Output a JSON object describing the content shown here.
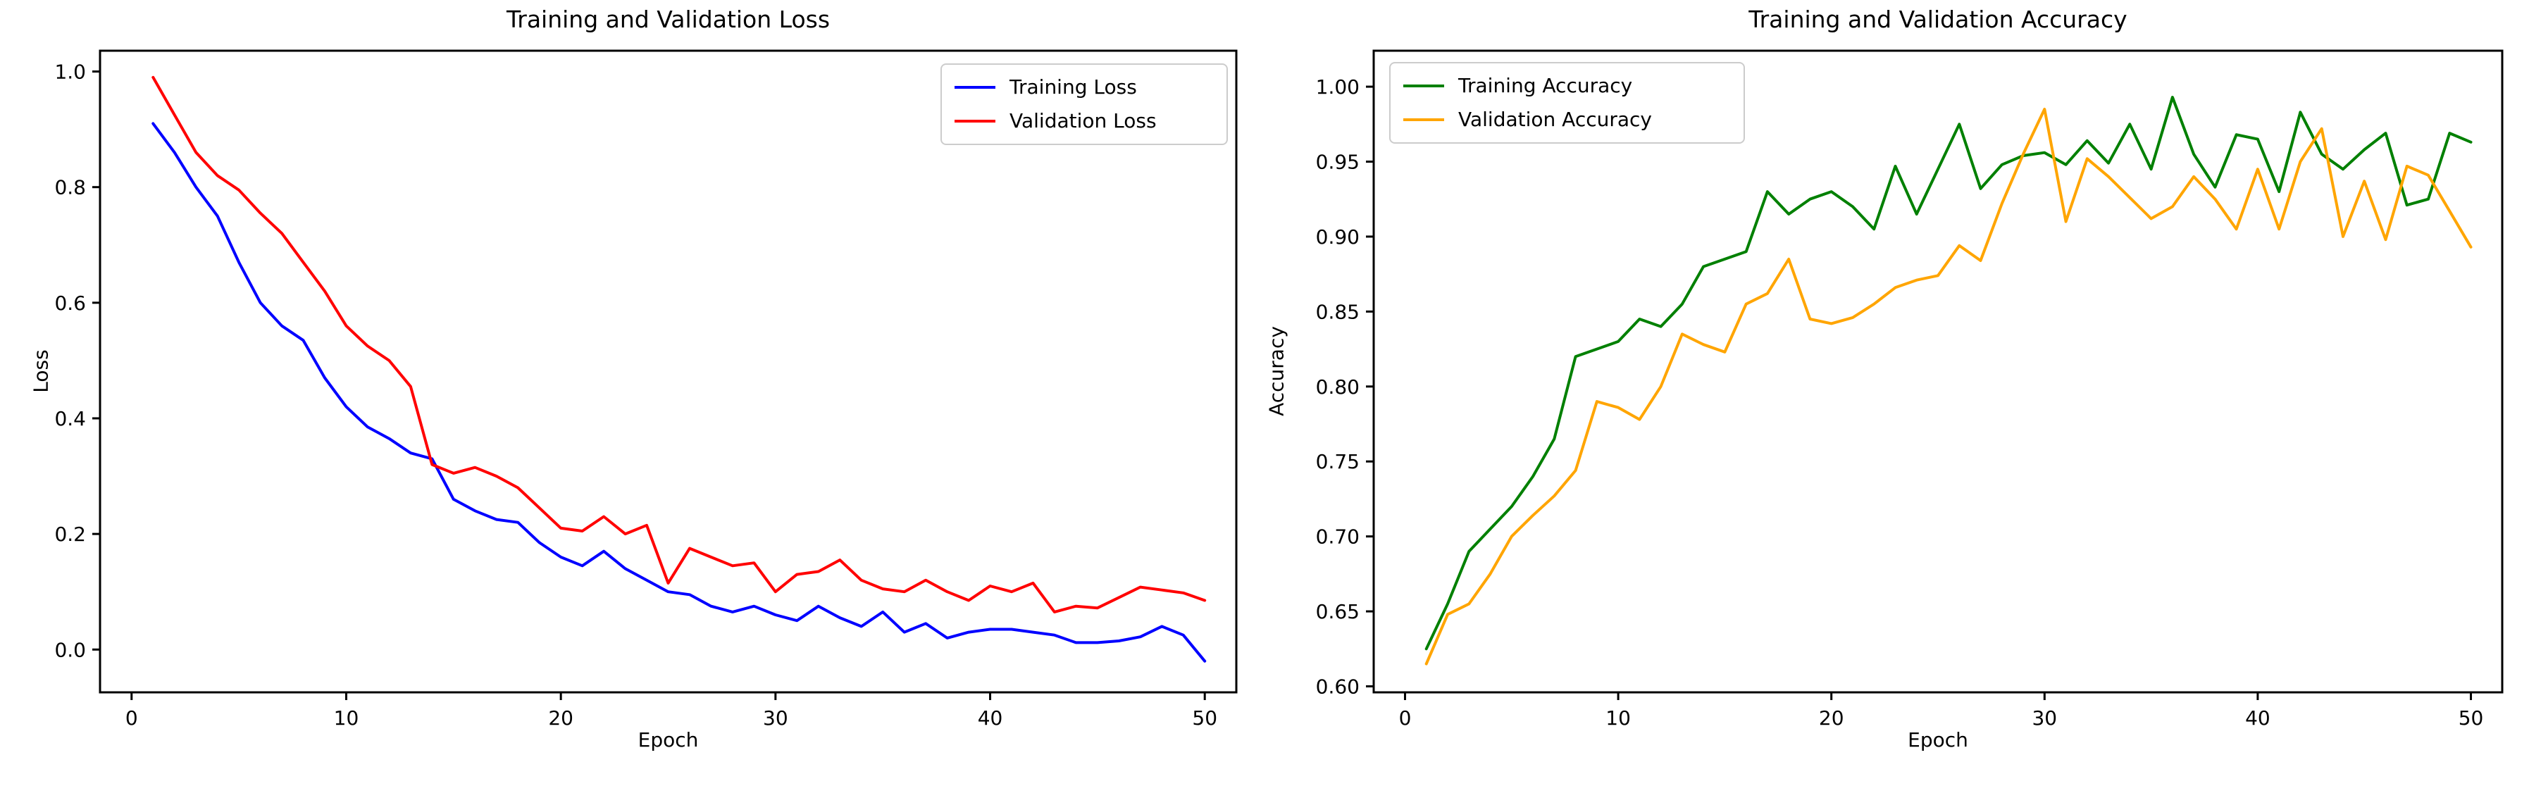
{
  "figure": {
    "background_color": "#ffffff",
    "text_color": "#000000",
    "spine_color": "#000000"
  },
  "chart_data": [
    {
      "type": "line",
      "title": "Training and Validation Loss",
      "xlabel": "Epoch",
      "ylabel": "Loss",
      "xlim": [
        -1.47,
        51.47
      ],
      "ylim": [
        -0.074,
        1.036
      ],
      "xticks": [
        0,
        10,
        20,
        30,
        40,
        50
      ],
      "xtick_labels": [
        "0",
        "10",
        "20",
        "30",
        "40",
        "50"
      ],
      "yticks": [
        0.0,
        0.2,
        0.4,
        0.6,
        0.8,
        1.0
      ],
      "ytick_labels": [
        "0.0",
        "0.2",
        "0.4",
        "0.6",
        "0.8",
        "1.0"
      ],
      "grid": false,
      "legend_position": "upper right",
      "x": [
        1,
        2,
        3,
        4,
        5,
        6,
        7,
        8,
        9,
        10,
        11,
        12,
        13,
        14,
        15,
        16,
        17,
        18,
        19,
        20,
        21,
        22,
        23,
        24,
        25,
        26,
        27,
        28,
        29,
        30,
        31,
        32,
        33,
        34,
        35,
        36,
        37,
        38,
        39,
        40,
        41,
        42,
        43,
        44,
        45,
        46,
        47,
        48,
        49,
        50
      ],
      "series": [
        {
          "name": "Training Loss",
          "color": "#0000ff",
          "values": [
            0.91,
            0.86,
            0.8,
            0.75,
            0.67,
            0.6,
            0.56,
            0.535,
            0.47,
            0.42,
            0.385,
            0.365,
            0.34,
            0.33,
            0.26,
            0.24,
            0.225,
            0.22,
            0.185,
            0.16,
            0.145,
            0.17,
            0.14,
            0.12,
            0.1,
            0.095,
            0.075,
            0.065,
            0.075,
            0.06,
            0.05,
            0.075,
            0.055,
            0.04,
            0.065,
            0.03,
            0.045,
            0.02,
            0.03,
            0.035,
            0.035,
            0.03,
            0.025,
            0.012,
            0.012,
            0.015,
            0.022,
            0.04,
            0.025,
            -0.02
          ]
        },
        {
          "name": "Validation Loss",
          "color": "#ff0000",
          "values": [
            0.99,
            0.925,
            0.86,
            0.82,
            0.795,
            0.755,
            0.72,
            0.67,
            0.62,
            0.56,
            0.525,
            0.5,
            0.455,
            0.32,
            0.305,
            0.315,
            0.3,
            0.28,
            0.245,
            0.21,
            0.205,
            0.23,
            0.2,
            0.215,
            0.115,
            0.175,
            0.16,
            0.145,
            0.15,
            0.1,
            0.13,
            0.135,
            0.155,
            0.12,
            0.105,
            0.1,
            0.12,
            0.1,
            0.085,
            0.11,
            0.1,
            0.115,
            0.065,
            0.075,
            0.072,
            0.09,
            0.108,
            0.103,
            0.098,
            0.085
          ]
        }
      ]
    },
    {
      "type": "line",
      "title": "Training and Validation Accuracy",
      "xlabel": "Epoch",
      "ylabel": "Accuracy",
      "xlim": [
        -1.47,
        51.47
      ],
      "ylim": [
        0.596,
        1.024
      ],
      "xticks": [
        0,
        10,
        20,
        30,
        40,
        50
      ],
      "xtick_labels": [
        "0",
        "10",
        "20",
        "30",
        "40",
        "50"
      ],
      "yticks": [
        0.6,
        0.65,
        0.7,
        0.75,
        0.8,
        0.85,
        0.9,
        0.95,
        1.0
      ],
      "ytick_labels": [
        "0.60",
        "0.65",
        "0.70",
        "0.75",
        "0.80",
        "0.85",
        "0.90",
        "0.95",
        "1.00"
      ],
      "grid": false,
      "legend_position": "upper left",
      "x": [
        1,
        2,
        3,
        4,
        5,
        6,
        7,
        8,
        9,
        10,
        11,
        12,
        13,
        14,
        15,
        16,
        17,
        18,
        19,
        20,
        21,
        22,
        23,
        24,
        25,
        26,
        27,
        28,
        29,
        30,
        31,
        32,
        33,
        34,
        35,
        36,
        37,
        38,
        39,
        40,
        41,
        42,
        43,
        44,
        45,
        46,
        47,
        48,
        49,
        50
      ],
      "series": [
        {
          "name": "Training Accuracy",
          "color": "#008000",
          "values": [
            0.625,
            0.655,
            0.69,
            0.705,
            0.72,
            0.74,
            0.765,
            0.82,
            0.825,
            0.83,
            0.845,
            0.84,
            0.855,
            0.88,
            0.885,
            0.89,
            0.93,
            0.915,
            0.925,
            0.93,
            0.92,
            0.905,
            0.947,
            0.915,
            0.945,
            0.975,
            0.932,
            0.948,
            0.954,
            0.956,
            0.948,
            0.964,
            0.949,
            0.975,
            0.945,
            0.993,
            0.955,
            0.933,
            0.968,
            0.965,
            0.93,
            0.983,
            0.955,
            0.945,
            0.958,
            0.969,
            0.921,
            0.925,
            0.969,
            0.963
          ]
        },
        {
          "name": "Validation Accuracy",
          "color": "#ffa500",
          "values": [
            0.615,
            0.648,
            0.655,
            0.675,
            0.7,
            0.714,
            0.727,
            0.744,
            0.79,
            0.786,
            0.778,
            0.8,
            0.835,
            0.828,
            0.823,
            0.855,
            0.862,
            0.885,
            0.845,
            0.842,
            0.846,
            0.855,
            0.866,
            0.871,
            0.874,
            0.894,
            0.884,
            0.922,
            0.955,
            0.985,
            0.91,
            0.952,
            0.94,
            0.926,
            0.912,
            0.92,
            0.94,
            0.925,
            0.905,
            0.945,
            0.905,
            0.95,
            0.972,
            0.9,
            0.937,
            0.898,
            0.947,
            0.941,
            0.917,
            0.893
          ]
        }
      ]
    }
  ]
}
